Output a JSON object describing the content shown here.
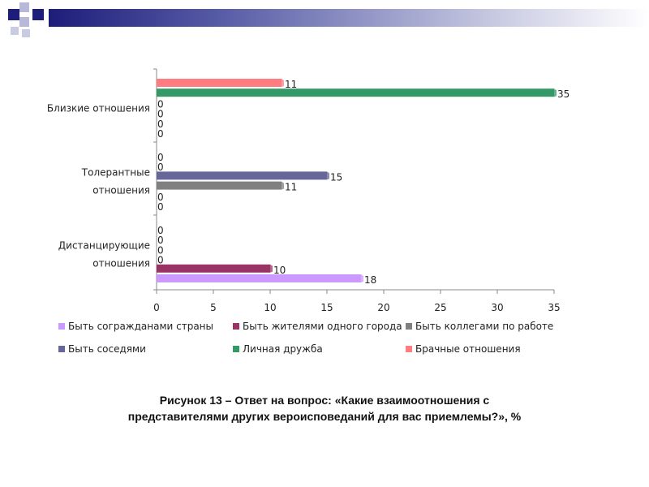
{
  "slide": {
    "caption_line1": "Рисунок 13 – Ответ на вопрос: «Какие взаимоотношения  с",
    "caption_line2": "представителями  других вероисповеданий для вас приемлемы?», %"
  },
  "chart_data": {
    "type": "bar",
    "orientation": "horizontal",
    "categories": [
      "Близкие отношения",
      "Толерантные отношения",
      "Дистанцирующие отношения"
    ],
    "category_lines": [
      [
        "Близкие отношения"
      ],
      [
        "Толерантные",
        "отношения"
      ],
      [
        "Дистанцирующие",
        "отношения"
      ]
    ],
    "series": [
      {
        "name": "Быть согражданами страны",
        "color": "#cc99ff",
        "values": [
          0,
          0,
          18
        ]
      },
      {
        "name": "Быть жителями одного города",
        "color": "#993366",
        "values": [
          0,
          0,
          10
        ]
      },
      {
        "name": "Быть коллегами по работе",
        "color": "#808080",
        "values": [
          0,
          11,
          0
        ]
      },
      {
        "name": "Быть соседями",
        "color": "#666699",
        "values": [
          0,
          15,
          0
        ]
      },
      {
        "name": "Личная дружба",
        "color": "#339966",
        "values": [
          35,
          0,
          0
        ]
      },
      {
        "name": "Брачные отношения",
        "color": "#ff7c80",
        "values": [
          11,
          0,
          0
        ]
      }
    ],
    "xlim": [
      0,
      35
    ],
    "xticks": [
      0,
      5,
      10,
      15,
      20,
      25,
      30,
      35
    ],
    "grid": false,
    "legend_position": "bottom"
  }
}
